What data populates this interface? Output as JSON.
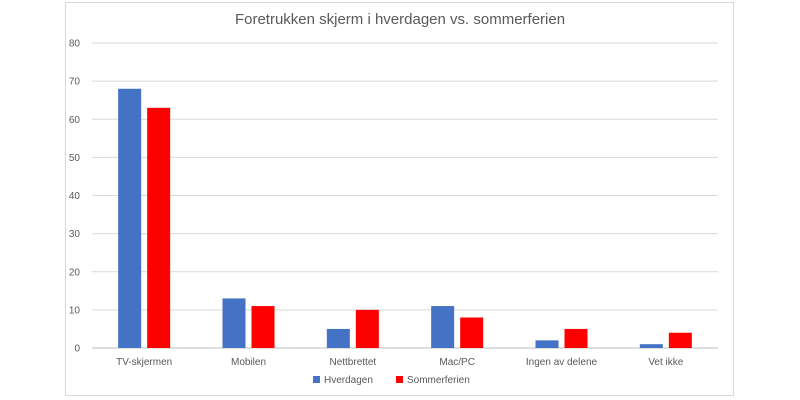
{
  "chart_data": {
    "type": "bar",
    "title": "Foretrukken skjerm i hverdagen vs. sommerferien",
    "xlabel": "",
    "ylabel": "",
    "ylim": [
      0,
      80
    ],
    "yticks": [
      0,
      10,
      20,
      30,
      40,
      50,
      60,
      70,
      80
    ],
    "grid": true,
    "legend_position": "bottom",
    "categories": [
      "TV-skjermen",
      "Mobilen",
      "Nettbrettet",
      "Mac/PC",
      "Ingen av delene",
      "Vet ikke"
    ],
    "series": [
      {
        "name": "Hverdagen",
        "color": "#4472c4",
        "values": [
          68,
          13,
          5,
          11,
          2,
          1
        ]
      },
      {
        "name": "Sommerferien",
        "color": "#ff0000",
        "values": [
          63,
          11,
          10,
          8,
          5,
          4
        ]
      }
    ]
  }
}
